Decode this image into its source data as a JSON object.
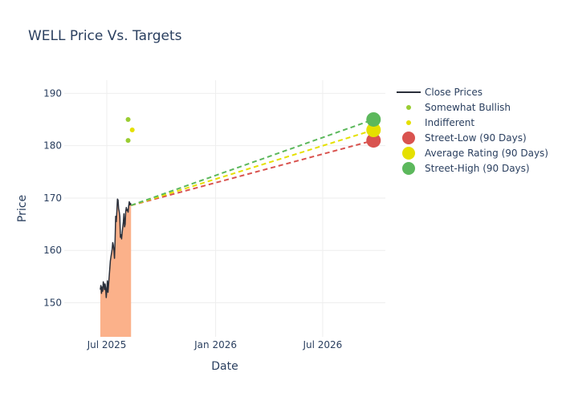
{
  "chart_data": {
    "type": "line",
    "title": "WELL Price Vs. Targets",
    "xlabel": "Date",
    "ylabel": "Price",
    "x_range": [
      "2025-04-20",
      "2026-10-15"
    ],
    "ylim": [
      143.5,
      192.5
    ],
    "y_ticks": [
      150,
      160,
      170,
      180,
      190
    ],
    "x_ticks": [
      {
        "date": "2025-07-01",
        "label": "Jul 2025"
      },
      {
        "date": "2026-01-01",
        "label": "Jan 2026"
      },
      {
        "date": "2026-07-01",
        "label": "Jul 2026"
      }
    ],
    "grid": true,
    "legend_position": "right",
    "close_prices": {
      "name": "Close Prices",
      "color": "#2a2f3a",
      "fill_color": "#fbb18a",
      "points": [
        [
          "2025-06-20",
          152.5
        ],
        [
          "2025-06-21",
          153.3
        ],
        [
          "2025-06-22",
          151.8
        ],
        [
          "2025-06-23",
          153.0
        ],
        [
          "2025-06-24",
          152.2
        ],
        [
          "2025-06-25",
          154.0
        ],
        [
          "2025-06-26",
          153.5
        ],
        [
          "2025-06-27",
          152.5
        ],
        [
          "2025-06-28",
          153.6
        ],
        [
          "2025-06-29",
          152.9
        ],
        [
          "2025-06-30",
          151.0
        ],
        [
          "2025-07-01",
          152.4
        ],
        [
          "2025-07-02",
          154.2
        ],
        [
          "2025-07-03",
          152.0
        ],
        [
          "2025-07-04",
          153.5
        ],
        [
          "2025-07-05",
          155.0
        ],
        [
          "2025-07-06",
          156.5
        ],
        [
          "2025-07-07",
          158.0
        ],
        [
          "2025-07-08",
          158.8
        ],
        [
          "2025-07-09",
          159.5
        ],
        [
          "2025-07-10",
          160.2
        ],
        [
          "2025-07-11",
          161.5
        ],
        [
          "2025-07-12",
          161.0
        ],
        [
          "2025-07-13",
          160.0
        ],
        [
          "2025-07-14",
          158.5
        ],
        [
          "2025-07-15",
          162.0
        ],
        [
          "2025-07-16",
          166.5
        ],
        [
          "2025-07-17",
          165.5
        ],
        [
          "2025-07-18",
          167.5
        ],
        [
          "2025-07-19",
          169.8
        ],
        [
          "2025-07-20",
          169.6
        ],
        [
          "2025-07-21",
          168.0
        ],
        [
          "2025-07-22",
          167.4
        ],
        [
          "2025-07-23",
          166.5
        ],
        [
          "2025-07-24",
          162.5
        ],
        [
          "2025-07-25",
          163.0
        ],
        [
          "2025-07-26",
          162.2
        ],
        [
          "2025-07-27",
          163.5
        ],
        [
          "2025-07-28",
          164.5
        ],
        [
          "2025-07-29",
          165.5
        ],
        [
          "2025-07-30",
          167.0
        ],
        [
          "2025-07-31",
          164.5
        ],
        [
          "2025-08-01",
          165.0
        ],
        [
          "2025-08-02",
          167.5
        ],
        [
          "2025-08-03",
          168.2
        ],
        [
          "2025-08-04",
          167.6
        ],
        [
          "2025-08-05",
          167.8
        ],
        [
          "2025-08-06",
          167.3
        ],
        [
          "2025-08-07",
          168.5
        ],
        [
          "2025-08-08",
          169.3
        ],
        [
          "2025-08-09",
          168.7
        ],
        [
          "2025-08-10",
          169.0
        ],
        [
          "2025-08-11",
          168.6
        ]
      ]
    },
    "analyst_ratings": [
      {
        "name": "Somewhat Bullish",
        "color": "#9acd32",
        "points": [
          [
            "2025-08-06",
            185
          ],
          [
            "2025-08-06",
            181
          ]
        ]
      },
      {
        "name": "Indifferent",
        "color": "#e5e000",
        "points": [
          [
            "2025-08-13",
            183
          ]
        ]
      }
    ],
    "targets": {
      "start": [
        "2025-08-11",
        168.6
      ],
      "target_date": "2026-09-25",
      "series": [
        {
          "name": "Street-Low (90 Days)",
          "value": 181,
          "color": "#d9534f"
        },
        {
          "name": "Average Rating (90 Days)",
          "value": 183,
          "color": "#e5e000"
        },
        {
          "name": "Street-High (90 Days)",
          "value": 185,
          "color": "#5cb85c"
        }
      ]
    },
    "legend": [
      {
        "label": "Close Prices",
        "kind": "line",
        "color": "#2a2f3a"
      },
      {
        "label": "Somewhat Bullish",
        "kind": "small-dot",
        "color": "#9acd32"
      },
      {
        "label": "Indifferent",
        "kind": "small-dot",
        "color": "#e5e000"
      },
      {
        "label": "Street-Low (90 Days)",
        "kind": "big-dot",
        "color": "#d9534f"
      },
      {
        "label": "Average Rating (90 Days)",
        "kind": "big-dot",
        "color": "#e5e000"
      },
      {
        "label": "Street-High (90 Days)",
        "kind": "big-dot",
        "color": "#5cb85c"
      }
    ]
  }
}
